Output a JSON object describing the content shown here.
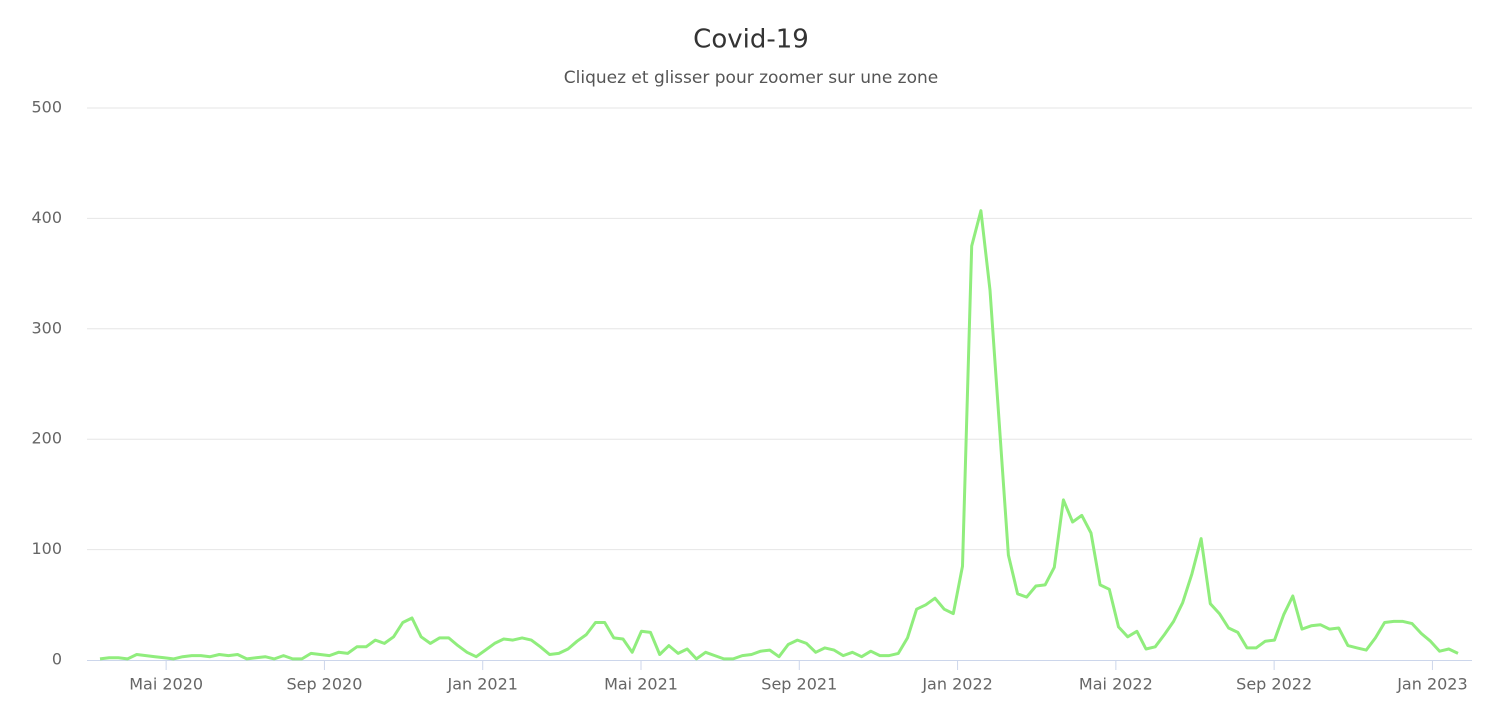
{
  "chart_data": {
    "type": "line",
    "title": "Covid-19",
    "subtitle": "Cliquez et glisser pour zoomer sur une zone",
    "series": [
      {
        "name": "Covid-19",
        "color": "#90ed7d",
        "values": [
          1,
          2,
          2,
          1,
          5,
          4,
          3,
          2,
          1,
          3,
          4,
          4,
          3,
          5,
          4,
          5,
          1,
          2,
          3,
          1,
          4,
          1,
          1,
          6,
          5,
          4,
          7,
          6,
          12,
          12,
          18,
          15,
          21,
          34,
          38,
          21,
          15,
          20,
          20,
          13,
          7,
          3,
          9,
          15,
          19,
          18,
          20,
          18,
          12,
          5,
          6,
          10,
          17,
          23,
          34,
          34,
          20,
          19,
          7,
          26,
          25,
          5,
          13,
          6,
          10,
          1,
          7,
          4,
          1,
          1,
          4,
          5,
          8,
          9,
          3,
          14,
          18,
          15,
          7,
          11,
          9,
          4,
          7,
          3,
          8,
          4,
          4,
          6,
          20,
          46,
          50,
          56,
          46,
          42,
          85,
          375,
          407,
          335,
          215,
          95,
          60,
          57,
          67,
          68,
          84,
          145,
          125,
          131,
          115,
          68,
          64,
          30,
          21,
          26,
          10,
          12,
          23,
          35,
          52,
          78,
          110,
          51,
          42,
          29,
          25,
          11,
          11,
          17,
          18,
          41,
          58,
          28,
          31,
          32,
          28,
          29,
          13,
          11,
          9,
          20,
          34,
          35,
          35,
          33,
          24,
          17,
          8,
          10,
          6
        ]
      }
    ],
    "xlim": [
      "2020-03",
      "2023-02"
    ],
    "xticks": [
      {
        "value": "2020-05",
        "label": "Mai 2020"
      },
      {
        "value": "2020-09",
        "label": "Sep 2020"
      },
      {
        "value": "2021-01",
        "label": "Jan 2021"
      },
      {
        "value": "2021-05",
        "label": "Mai 2021"
      },
      {
        "value": "2021-09",
        "label": "Sep 2021"
      },
      {
        "value": "2022-01",
        "label": "Jan 2022"
      },
      {
        "value": "2022-05",
        "label": "Mai 2022"
      },
      {
        "value": "2022-09",
        "label": "Sep 2022"
      },
      {
        "value": "2023-01",
        "label": "Jan 2023"
      }
    ],
    "ylim": [
      0,
      500
    ],
    "yticks": [
      0,
      100,
      200,
      300,
      400,
      500
    ],
    "grid": true
  }
}
